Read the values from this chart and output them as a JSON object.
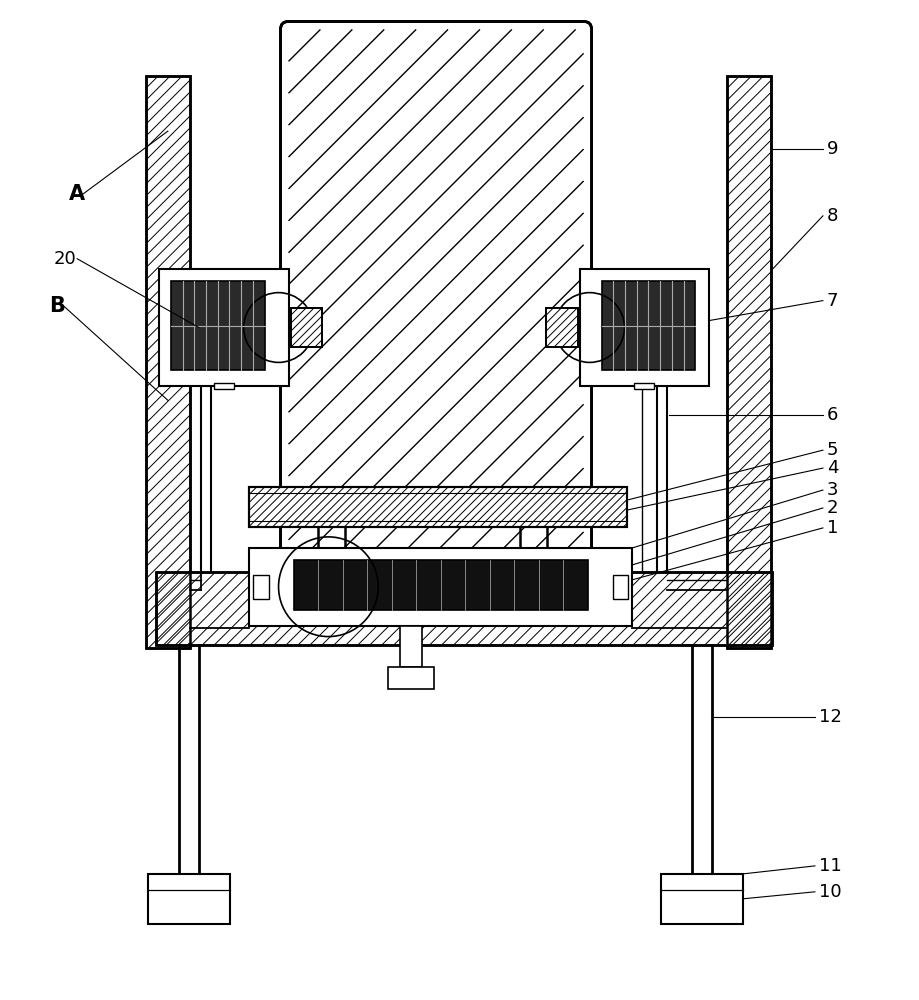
{
  "bg_color": "#ffffff",
  "line_color": "#000000",
  "fig_width": 9.19,
  "fig_height": 10.0
}
